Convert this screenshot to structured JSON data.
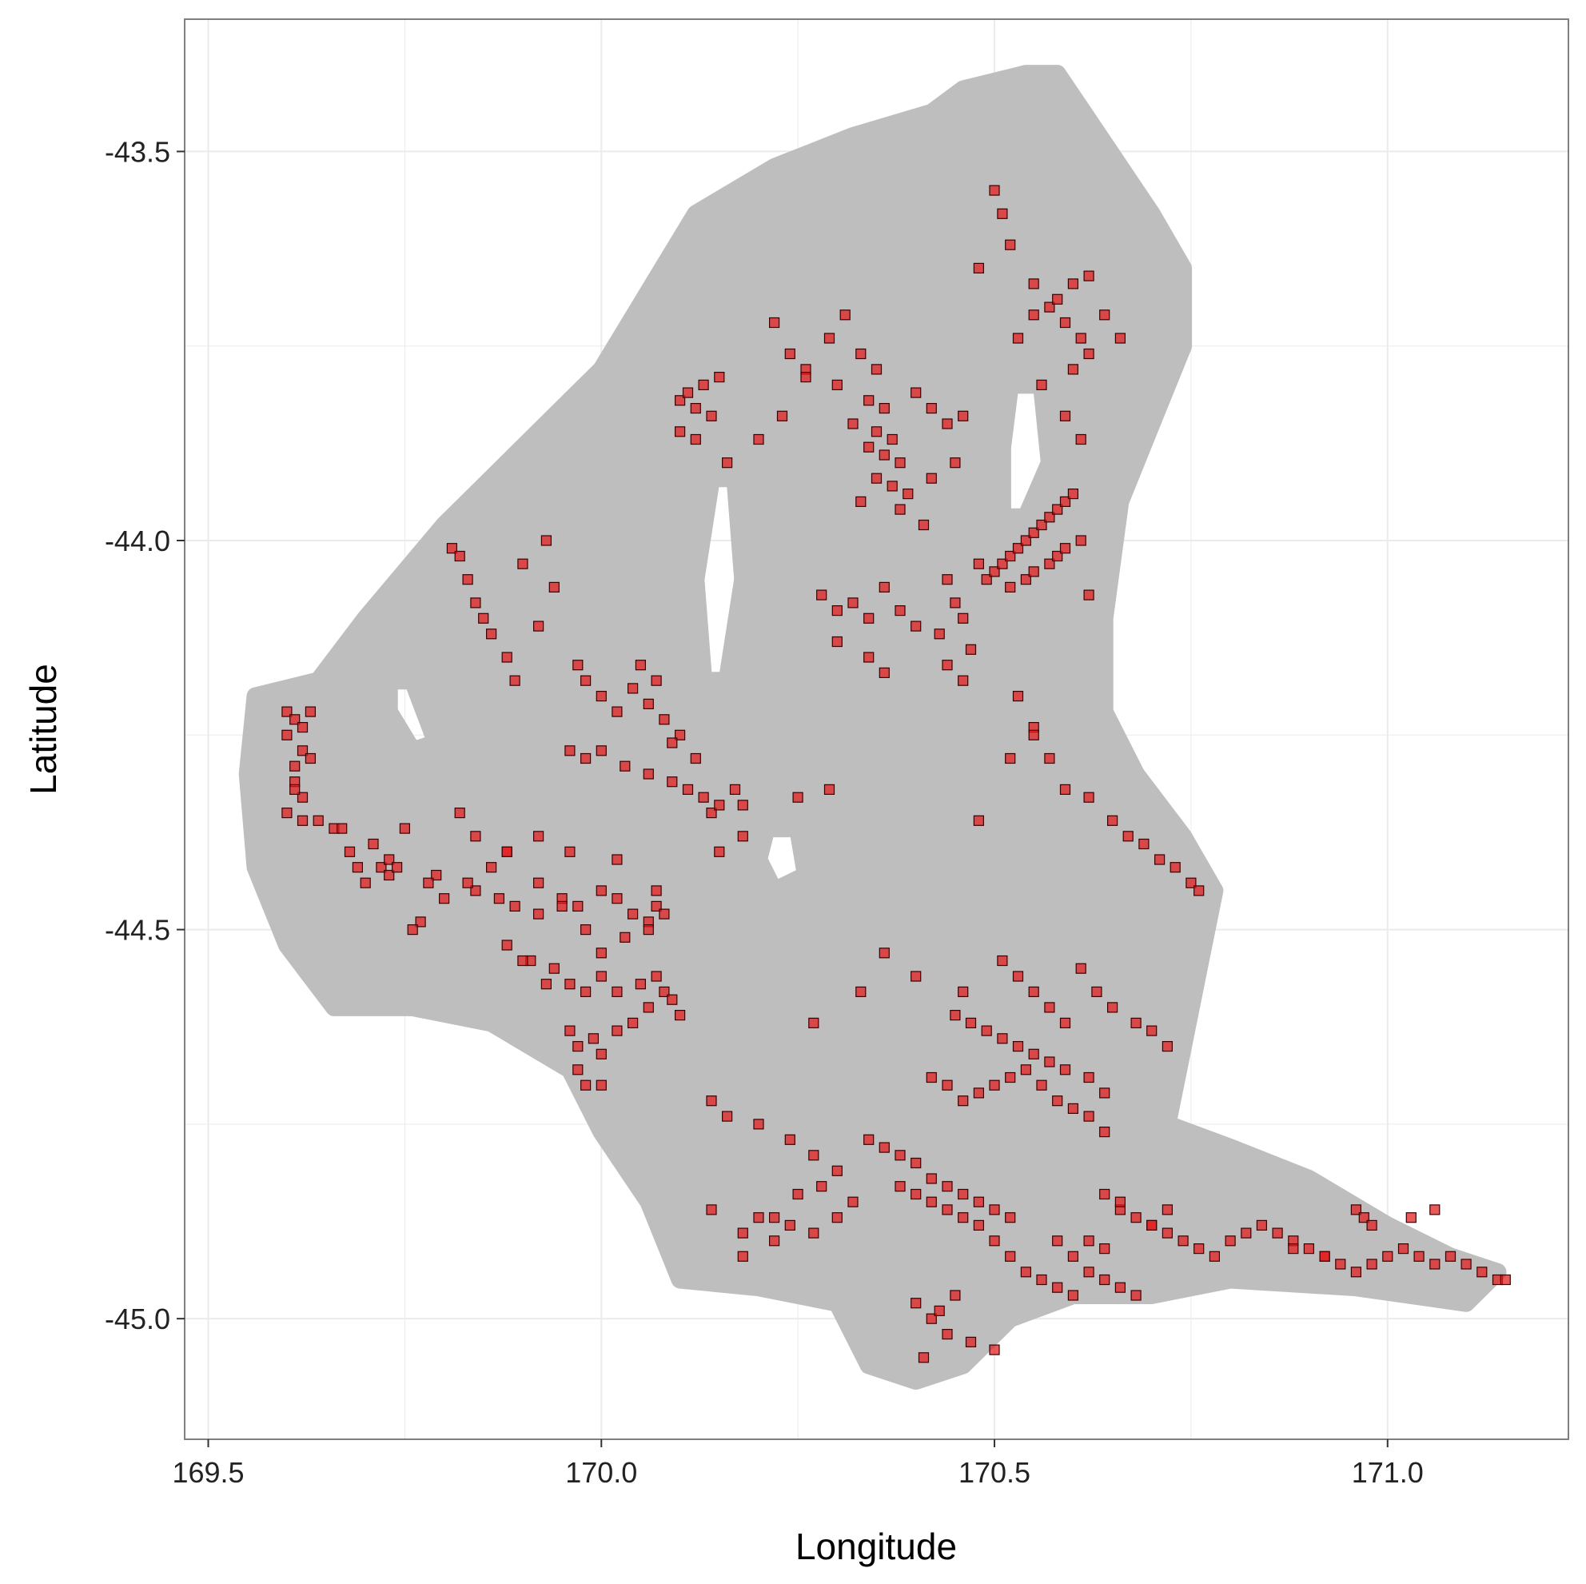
{
  "chart_data": {
    "type": "scatter",
    "title": "",
    "xlabel": "Longitude",
    "ylabel": "Latitude",
    "xlim": [
      169.47,
      171.23
    ],
    "ylim": [
      -45.155,
      -43.33
    ],
    "xticks": [
      169.5,
      170.0,
      170.5,
      171.0
    ],
    "xtick_labels": [
      "169.5",
      "170.0",
      "170.5",
      "171.0"
    ],
    "yticks": [
      -43.5,
      -44.0,
      -44.5,
      -45.0
    ],
    "ytick_labels": [
      "-43.5",
      "-44.0",
      "-44.5",
      "-45.0"
    ],
    "grid": true,
    "legend": "none",
    "colors": {
      "background_cloud": "#bebebe",
      "points_fill": "#e31a1c",
      "points_edge": "#3a0000",
      "grid": "#ebebeb",
      "panel_border": "#7f7f7f"
    },
    "background_region": {
      "description": "dense grey circles",
      "outline": [
        [
          169.56,
          -44.2
        ],
        [
          169.64,
          -44.18
        ],
        [
          169.7,
          -44.1
        ],
        [
          169.8,
          -43.98
        ],
        [
          169.9,
          -43.88
        ],
        [
          170.0,
          -43.78
        ],
        [
          170.06,
          -43.68
        ],
        [
          170.12,
          -43.58
        ],
        [
          170.22,
          -43.52
        ],
        [
          170.32,
          -43.48
        ],
        [
          170.42,
          -43.45
        ],
        [
          170.46,
          -43.42
        ],
        [
          170.54,
          -43.4
        ],
        [
          170.58,
          -43.4
        ],
        [
          170.62,
          -43.46
        ],
        [
          170.66,
          -43.52
        ],
        [
          170.7,
          -43.58
        ],
        [
          170.74,
          -43.65
        ],
        [
          170.74,
          -43.75
        ],
        [
          170.7,
          -43.85
        ],
        [
          170.66,
          -43.95
        ],
        [
          170.64,
          -44.1
        ],
        [
          170.64,
          -44.22
        ],
        [
          170.68,
          -44.3
        ],
        [
          170.74,
          -44.38
        ],
        [
          170.78,
          -44.45
        ],
        [
          170.76,
          -44.55
        ],
        [
          170.74,
          -44.65
        ],
        [
          170.72,
          -44.75
        ],
        [
          170.8,
          -44.78
        ],
        [
          170.9,
          -44.82
        ],
        [
          171.0,
          -44.88
        ],
        [
          171.08,
          -44.92
        ],
        [
          171.14,
          -44.94
        ],
        [
          171.1,
          -44.98
        ],
        [
          170.96,
          -44.96
        ],
        [
          170.8,
          -44.95
        ],
        [
          170.7,
          -44.97
        ],
        [
          170.6,
          -44.97
        ],
        [
          170.52,
          -45.0
        ],
        [
          170.46,
          -45.06
        ],
        [
          170.4,
          -45.08
        ],
        [
          170.34,
          -45.06
        ],
        [
          170.3,
          -44.98
        ],
        [
          170.2,
          -44.96
        ],
        [
          170.1,
          -44.95
        ],
        [
          170.06,
          -44.85
        ],
        [
          170.0,
          -44.76
        ],
        [
          169.96,
          -44.68
        ],
        [
          169.86,
          -44.62
        ],
        [
          169.76,
          -44.6
        ],
        [
          169.66,
          -44.6
        ],
        [
          169.6,
          -44.52
        ],
        [
          169.56,
          -44.42
        ],
        [
          169.55,
          -44.3
        ]
      ],
      "holes": [
        [
          [
            170.14,
            -43.92
          ],
          [
            170.17,
            -43.92
          ],
          [
            170.18,
            -44.05
          ],
          [
            170.16,
            -44.18
          ],
          [
            170.13,
            -44.18
          ],
          [
            170.12,
            -44.05
          ]
        ],
        [
          [
            170.52,
            -43.8
          ],
          [
            170.56,
            -43.8
          ],
          [
            170.57,
            -43.9
          ],
          [
            170.54,
            -43.97
          ],
          [
            170.51,
            -43.97
          ],
          [
            170.51,
            -43.88
          ]
        ],
        [
          [
            169.73,
            -44.18
          ],
          [
            169.76,
            -44.18
          ],
          [
            169.79,
            -44.26
          ],
          [
            169.76,
            -44.27
          ],
          [
            169.73,
            -44.22
          ]
        ],
        [
          [
            170.21,
            -44.37
          ],
          [
            170.25,
            -44.37
          ],
          [
            170.26,
            -44.43
          ],
          [
            170.22,
            -44.45
          ],
          [
            170.2,
            -44.41
          ]
        ]
      ]
    },
    "series": [
      {
        "marker": "square",
        "x": [
          169.6,
          169.61,
          169.62,
          169.6,
          169.62,
          169.61,
          169.63,
          169.61,
          169.62,
          169.63,
          169.6,
          169.62,
          169.61,
          169.64,
          169.66,
          169.68,
          169.71,
          169.72,
          169.73,
          169.7,
          169.75,
          169.77,
          169.76,
          169.73,
          169.69,
          169.67,
          169.81,
          169.82,
          169.83,
          169.84,
          169.85,
          169.86,
          169.88,
          169.89,
          169.9,
          169.93,
          169.94,
          169.92,
          169.97,
          169.98,
          170.0,
          170.02,
          170.04,
          170.06,
          170.08,
          170.1,
          170.12,
          170.05,
          170.07,
          170.09,
          169.96,
          169.98,
          170.0,
          170.03,
          170.06,
          170.09,
          170.11,
          170.13,
          170.14,
          170.15,
          170.17,
          170.18,
          169.84,
          169.87,
          169.89,
          169.92,
          169.95,
          169.97,
          170.0,
          170.02,
          170.04,
          170.06,
          170.07,
          170.08,
          169.96,
          169.98,
          170.0,
          170.02,
          170.05,
          170.07,
          170.08,
          170.09,
          170.1,
          169.91,
          169.94,
          169.88,
          169.96,
          169.97,
          169.99,
          170.0,
          170.02,
          170.04,
          170.06,
          169.97,
          169.98,
          170.0,
          169.79,
          169.83,
          169.86,
          169.88,
          169.92,
          169.95,
          169.98,
          170.0,
          170.03,
          170.06,
          169.9,
          169.93,
          169.82,
          169.84,
          169.88,
          169.92,
          169.96,
          170.02,
          170.07,
          169.74,
          169.78,
          169.8,
          170.1,
          170.12,
          170.14,
          170.11,
          170.13,
          170.15,
          170.1,
          170.12,
          170.16,
          170.2,
          170.23,
          170.26,
          170.3,
          170.34,
          170.36,
          170.32,
          170.35,
          170.37,
          170.4,
          170.42,
          170.44,
          170.46,
          170.34,
          170.36,
          170.38,
          170.35,
          170.37,
          170.39,
          170.42,
          170.45,
          170.38,
          170.41,
          170.33,
          170.28,
          170.3,
          170.32,
          170.34,
          170.36,
          170.38,
          170.4,
          170.3,
          170.34,
          170.36,
          170.22,
          170.24,
          170.26,
          170.29,
          170.31,
          170.33,
          170.35,
          170.44,
          170.45,
          170.46,
          170.43,
          170.47,
          170.48,
          170.44,
          170.46,
          170.49,
          170.5,
          170.51,
          170.52,
          170.53,
          170.54,
          170.55,
          170.56,
          170.57,
          170.58,
          170.59,
          170.6,
          170.52,
          170.54,
          170.55,
          170.57,
          170.58,
          170.59,
          170.61,
          170.62,
          170.5,
          170.51,
          170.52,
          170.48,
          170.55,
          170.57,
          170.59,
          170.61,
          170.62,
          170.6,
          170.53,
          170.55,
          170.58,
          170.6,
          170.62,
          170.64,
          170.66,
          170.56,
          170.59,
          170.61,
          170.53,
          170.55,
          170.57,
          170.59,
          170.62,
          170.65,
          170.67,
          170.69,
          170.71,
          170.73,
          170.75,
          170.76,
          170.51,
          170.53,
          170.55,
          170.57,
          170.59,
          170.61,
          170.63,
          170.65,
          170.68,
          170.7,
          170.72,
          170.45,
          170.47,
          170.49,
          170.51,
          170.53,
          170.55,
          170.57,
          170.59,
          170.62,
          170.64,
          170.42,
          170.44,
          170.46,
          170.48,
          170.5,
          170.52,
          170.54,
          170.56,
          170.58,
          170.6,
          170.62,
          170.64,
          170.34,
          170.36,
          170.38,
          170.4,
          170.42,
          170.44,
          170.46,
          170.48,
          170.5,
          170.52,
          170.14,
          170.16,
          170.2,
          170.24,
          170.27,
          170.3,
          170.28,
          170.32,
          170.22,
          170.18,
          170.38,
          170.4,
          170.42,
          170.44,
          170.46,
          170.48,
          170.5,
          170.52,
          170.54,
          170.56,
          170.58,
          170.6,
          170.62,
          170.64,
          170.66,
          170.68,
          170.7,
          170.72,
          170.74,
          170.76,
          170.78,
          170.8,
          170.82,
          170.84,
          170.86,
          170.88,
          170.9,
          170.92,
          170.94,
          170.96,
          170.98,
          171.0,
          171.02,
          171.04,
          171.06,
          171.08,
          171.1,
          171.12,
          171.14,
          171.15,
          170.96,
          170.97,
          170.98,
          171.03,
          171.06,
          170.92,
          170.88,
          170.4,
          170.42,
          170.44,
          170.47,
          170.5,
          170.43,
          170.45,
          170.41,
          170.24,
          170.27,
          170.22,
          170.18,
          170.14,
          170.3,
          170.25,
          170.2,
          170.58,
          170.6,
          170.62,
          170.64,
          170.66,
          170.68,
          170.7,
          170.72,
          170.66,
          170.64,
          170.15,
          170.18,
          170.36,
          170.4,
          170.33,
          170.27,
          170.46,
          170.29,
          170.25,
          170.52,
          170.55,
          170.48
        ],
        "y": [
          -44.22,
          -44.23,
          -44.24,
          -44.25,
          -44.27,
          -44.29,
          -44.22,
          -44.31,
          -44.33,
          -44.28,
          -44.35,
          -44.36,
          -44.32,
          -44.36,
          -44.37,
          -44.4,
          -44.39,
          -44.42,
          -44.43,
          -44.44,
          -44.37,
          -44.49,
          -44.5,
          -44.41,
          -44.42,
          -44.37,
          -44.01,
          -44.02,
          -44.05,
          -44.08,
          -44.1,
          -44.12,
          -44.15,
          -44.18,
          -44.03,
          -44.0,
          -44.06,
          -44.11,
          -44.16,
          -44.18,
          -44.2,
          -44.22,
          -44.19,
          -44.21,
          -44.23,
          -44.25,
          -44.28,
          -44.16,
          -44.18,
          -44.26,
          -44.27,
          -44.28,
          -44.27,
          -44.29,
          -44.3,
          -44.31,
          -44.32,
          -44.33,
          -44.35,
          -44.34,
          -44.32,
          -44.34,
          -44.45,
          -44.46,
          -44.47,
          -44.48,
          -44.46,
          -44.47,
          -44.45,
          -44.46,
          -44.48,
          -44.49,
          -44.47,
          -44.48,
          -44.57,
          -44.58,
          -44.56,
          -44.58,
          -44.57,
          -44.56,
          -44.58,
          -44.59,
          -44.61,
          -44.54,
          -44.55,
          -44.52,
          -44.63,
          -44.65,
          -44.64,
          -44.66,
          -44.63,
          -44.62,
          -44.6,
          -44.68,
          -44.7,
          -44.7,
          -44.43,
          -44.44,
          -44.42,
          -44.4,
          -44.44,
          -44.47,
          -44.5,
          -44.53,
          -44.51,
          -44.5,
          -44.54,
          -44.57,
          -44.35,
          -44.38,
          -44.4,
          -44.38,
          -44.4,
          -44.41,
          -44.45,
          -44.42,
          -44.44,
          -44.46,
          -43.82,
          -43.83,
          -43.84,
          -43.81,
          -43.8,
          -43.79,
          -43.86,
          -43.87,
          -43.9,
          -43.87,
          -43.84,
          -43.78,
          -43.8,
          -43.82,
          -43.83,
          -43.85,
          -43.86,
          -43.87,
          -43.81,
          -43.83,
          -43.85,
          -43.84,
          -43.88,
          -43.89,
          -43.9,
          -43.92,
          -43.93,
          -43.94,
          -43.92,
          -43.9,
          -43.96,
          -43.98,
          -43.95,
          -44.07,
          -44.09,
          -44.08,
          -44.1,
          -44.06,
          -44.09,
          -44.11,
          -44.13,
          -44.15,
          -44.17,
          -43.72,
          -43.76,
          -43.79,
          -43.74,
          -43.71,
          -43.76,
          -43.78,
          -44.05,
          -44.08,
          -44.1,
          -44.12,
          -44.14,
          -44.03,
          -44.16,
          -44.18,
          -44.05,
          -44.04,
          -44.03,
          -44.02,
          -44.01,
          -44.0,
          -43.99,
          -43.98,
          -43.97,
          -43.96,
          -43.95,
          -43.94,
          -44.06,
          -44.05,
          -44.04,
          -44.03,
          -44.02,
          -44.01,
          -44.0,
          -44.07,
          -43.55,
          -43.58,
          -43.62,
          -43.65,
          -43.67,
          -43.7,
          -43.72,
          -43.74,
          -43.76,
          -43.78,
          -43.74,
          -43.71,
          -43.69,
          -43.67,
          -43.66,
          -43.71,
          -43.74,
          -43.8,
          -43.84,
          -43.87,
          -44.2,
          -44.24,
          -44.28,
          -44.32,
          -44.33,
          -44.36,
          -44.38,
          -44.39,
          -44.41,
          -44.42,
          -44.44,
          -44.45,
          -44.54,
          -44.56,
          -44.58,
          -44.6,
          -44.62,
          -44.55,
          -44.58,
          -44.6,
          -44.62,
          -44.63,
          -44.65,
          -44.61,
          -44.62,
          -44.63,
          -44.64,
          -44.65,
          -44.66,
          -44.67,
          -44.68,
          -44.69,
          -44.71,
          -44.69,
          -44.7,
          -44.72,
          -44.71,
          -44.7,
          -44.69,
          -44.68,
          -44.7,
          -44.72,
          -44.73,
          -44.74,
          -44.76,
          -44.77,
          -44.78,
          -44.79,
          -44.8,
          -44.82,
          -44.83,
          -44.84,
          -44.85,
          -44.86,
          -44.87,
          -44.72,
          -44.74,
          -44.75,
          -44.77,
          -44.79,
          -44.81,
          -44.83,
          -44.85,
          -44.87,
          -44.89,
          -44.83,
          -44.84,
          -44.85,
          -44.86,
          -44.87,
          -44.88,
          -44.9,
          -44.92,
          -44.94,
          -44.95,
          -44.96,
          -44.97,
          -44.9,
          -44.91,
          -44.86,
          -44.87,
          -44.88,
          -44.89,
          -44.9,
          -44.91,
          -44.92,
          -44.9,
          -44.89,
          -44.88,
          -44.89,
          -44.9,
          -44.91,
          -44.92,
          -44.93,
          -44.94,
          -44.93,
          -44.92,
          -44.91,
          -44.92,
          -44.93,
          -44.92,
          -44.93,
          -44.94,
          -44.95,
          -44.95,
          -44.86,
          -44.87,
          -44.88,
          -44.87,
          -44.86,
          -44.92,
          -44.91,
          -44.98,
          -45.0,
          -45.02,
          -45.03,
          -45.04,
          -44.99,
          -44.97,
          -45.05,
          -44.88,
          -44.89,
          -44.9,
          -44.92,
          -44.86,
          -44.87,
          -44.84,
          -44.87,
          -44.9,
          -44.92,
          -44.94,
          -44.95,
          -44.96,
          -44.97,
          -44.88,
          -44.86,
          -44.85,
          -44.84,
          -44.4,
          -44.38,
          -44.53,
          -44.56,
          -44.58,
          -44.62,
          -44.58,
          -44.32,
          -44.33,
          -44.28,
          -44.25,
          -44.36
        ]
      }
    ]
  }
}
